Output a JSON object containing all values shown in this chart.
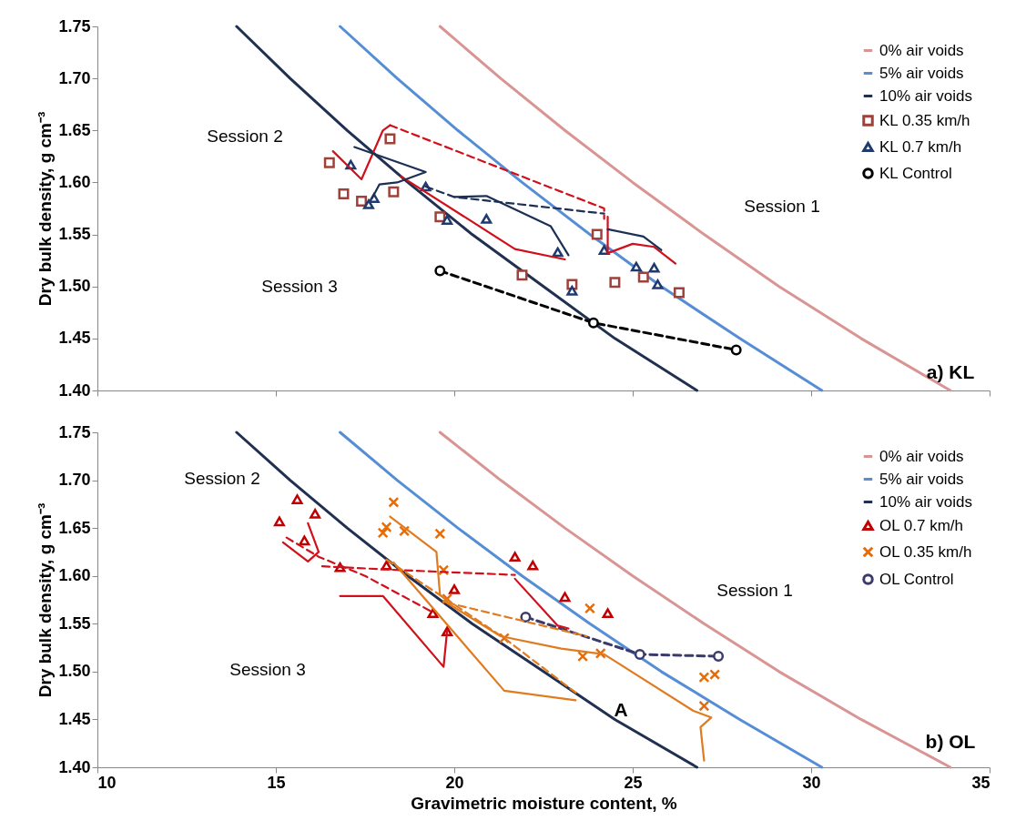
{
  "chart_data": [
    {
      "type": "scatter",
      "ylabel": "Dry bulk density, g cm⁻³",
      "xlim": [
        10,
        35
      ],
      "xticks": [
        10,
        15,
        20,
        25,
        30,
        35
      ],
      "ylim": [
        1.4,
        1.75
      ],
      "yticks": [
        {
          "value": 1.4,
          "label": "1.40"
        },
        {
          "value": 1.45,
          "label": "1.45"
        },
        {
          "value": 1.5,
          "label": "1.50"
        },
        {
          "value": 1.55,
          "label": "1.55"
        },
        {
          "value": 1.6,
          "label": "1.60"
        },
        {
          "value": 1.65,
          "label": "1.65"
        },
        {
          "value": 1.7,
          "label": "1.70"
        },
        {
          "value": 1.75,
          "label": "1.75"
        }
      ],
      "tick_labels": "y",
      "legend": "top right",
      "series": [
        {
          "name": "0% air voids",
          "type": "line",
          "color": "#d99594",
          "line_style": "solid",
          "x": [
            19.6,
            21.3,
            23.1,
            25.0,
            27.0,
            29.1,
            31.4,
            33.9
          ],
          "values": [
            1.75,
            1.7,
            1.65,
            1.6,
            1.55,
            1.5,
            1.45,
            1.4
          ]
        },
        {
          "name": "5% air voids",
          "type": "line",
          "color": "#558ed5",
          "line_style": "solid",
          "x": [
            16.8,
            18.4,
            20.1,
            21.9,
            23.8,
            25.8,
            28.0,
            30.3
          ],
          "values": [
            1.75,
            1.7,
            1.65,
            1.6,
            1.55,
            1.5,
            1.45,
            1.4
          ]
        },
        {
          "name": "10% air voids",
          "type": "line",
          "color": "#1f3050",
          "line_style": "solid",
          "x": [
            13.9,
            15.4,
            17.0,
            18.7,
            20.5,
            22.5,
            24.5,
            26.8
          ],
          "values": [
            1.75,
            1.7,
            1.65,
            1.6,
            1.55,
            1.5,
            1.45,
            1.4
          ]
        },
        {
          "name": "KL 0.35 km/h",
          "type": "scatter",
          "color": "#a0403a",
          "marker": "square",
          "x": [
            16.5,
            18.2,
            16.9,
            17.4,
            18.3,
            19.6,
            21.9,
            23.3,
            24.0,
            24.5,
            25.3,
            26.3
          ],
          "values": [
            1.619,
            1.642,
            1.589,
            1.582,
            1.591,
            1.567,
            1.511,
            1.502,
            1.55,
            1.504,
            1.509,
            1.494
          ]
        },
        {
          "name": "KL 0.7 km/h",
          "type": "scatter",
          "color": "#1f3a6e",
          "marker": "triangle",
          "x": [
            17.1,
            17.6,
            17.75,
            19.2,
            19.8,
            20.9,
            22.9,
            23.3,
            24.2,
            25.1,
            25.6,
            25.7
          ],
          "values": [
            1.617,
            1.579,
            1.585,
            1.596,
            1.564,
            1.565,
            1.533,
            1.496,
            1.535,
            1.519,
            1.518,
            1.502
          ]
        },
        {
          "name": "KL Control",
          "type": "line",
          "color": "#000000",
          "line_style": "dashed",
          "marker": "circle",
          "x": [
            19.6,
            23.9,
            27.9
          ],
          "values": [
            1.515,
            1.465,
            1.439
          ]
        },
        {
          "type": "line",
          "color": "#d0101b",
          "line_style": "solid",
          "x": [
            16.6,
            17.4,
            18.0,
            18.2
          ],
          "values": [
            1.63,
            1.603,
            1.65,
            1.655
          ]
        },
        {
          "type": "line",
          "color": "#d0101b",
          "line_style": "dashed",
          "x": [
            18.2,
            24.2,
            24.2
          ],
          "values": [
            1.655,
            1.575,
            1.565
          ]
        },
        {
          "type": "line",
          "color": "#d0101b",
          "line_style": "solid",
          "x": [
            24.3,
            24.3,
            25.0,
            25.6,
            26.2
          ],
          "values": [
            1.567,
            1.532,
            1.541,
            1.538,
            1.522
          ]
        },
        {
          "type": "line",
          "color": "#d0101b",
          "line_style": "solid",
          "x": [
            18.5,
            21.7,
            23.1
          ],
          "values": [
            1.606,
            1.536,
            1.526
          ]
        },
        {
          "type": "line",
          "color": "#1c2f55",
          "line_style": "solid",
          "x": [
            17.2,
            19.2,
            18.4,
            17.9,
            17.7
          ],
          "values": [
            1.634,
            1.61,
            1.6,
            1.598,
            1.585
          ]
        },
        {
          "type": "line",
          "color": "#1c2f55",
          "line_style": "dashed",
          "x": [
            19.2,
            20.0,
            24.2
          ],
          "values": [
            1.596,
            1.586,
            1.57
          ]
        },
        {
          "type": "line",
          "color": "#1c2f55",
          "line_style": "solid",
          "x": [
            20.0,
            20.9,
            22.7,
            23.2
          ],
          "values": [
            1.586,
            1.587,
            1.558,
            1.53
          ]
        },
        {
          "type": "line",
          "color": "#1c2f55",
          "line_style": "solid",
          "x": [
            24.3,
            25.3,
            25.8
          ],
          "values": [
            1.555,
            1.548,
            1.535
          ]
        }
      ],
      "annotations": [
        "Session 2",
        "Session 1",
        "Session 3",
        "a) KL"
      ]
    },
    {
      "type": "scatter",
      "xlabel": "Gravimetric moisture content, %",
      "ylabel": "Dry bulk density, g cm⁻³",
      "xlim": [
        10,
        35
      ],
      "xticks": [
        10,
        15,
        20,
        25,
        30,
        35
      ],
      "ylim": [
        1.4,
        1.75
      ],
      "yticks": [
        {
          "value": 1.4,
          "label": "1.40"
        },
        {
          "value": 1.45,
          "label": "1.45"
        },
        {
          "value": 1.5,
          "label": "1.50"
        },
        {
          "value": 1.55,
          "label": "1.55"
        },
        {
          "value": 1.6,
          "label": "1.60"
        },
        {
          "value": 1.65,
          "label": "1.65"
        },
        {
          "value": 1.7,
          "label": "1.70"
        },
        {
          "value": 1.75,
          "label": "1.75"
        }
      ],
      "legend": "top right",
      "series": [
        {
          "name": "0% air voids",
          "type": "line",
          "color": "#d99594",
          "line_style": "solid",
          "x": [
            19.6,
            21.3,
            23.1,
            25.0,
            27.0,
            29.1,
            31.4,
            33.9
          ],
          "values": [
            1.75,
            1.7,
            1.65,
            1.6,
            1.55,
            1.5,
            1.45,
            1.4
          ]
        },
        {
          "name": "5% air voids",
          "type": "line",
          "color": "#558ed5",
          "line_style": "solid",
          "x": [
            16.8,
            18.4,
            20.1,
            21.9,
            23.8,
            25.8,
            28.0,
            30.3
          ],
          "values": [
            1.75,
            1.7,
            1.65,
            1.6,
            1.55,
            1.5,
            1.45,
            1.4
          ]
        },
        {
          "name": "10% air voids",
          "type": "line",
          "color": "#1f3050",
          "line_style": "solid",
          "x": [
            13.9,
            15.4,
            17.0,
            18.7,
            20.5,
            22.5,
            24.5,
            26.8
          ],
          "values": [
            1.75,
            1.7,
            1.65,
            1.6,
            1.55,
            1.5,
            1.45,
            1.4
          ]
        },
        {
          "name": "OL 0.7 km/h",
          "type": "scatter",
          "color": "#c00000",
          "marker": "triangle",
          "x": [
            15.6,
            16.1,
            15.1,
            15.8,
            16.8,
            18.1,
            20.0,
            19.8,
            19.4,
            21.7,
            22.2,
            23.1,
            24.3
          ],
          "values": [
            1.68,
            1.665,
            1.657,
            1.637,
            1.609,
            1.611,
            1.586,
            1.542,
            1.561,
            1.62,
            1.611,
            1.578,
            1.561
          ]
        },
        {
          "name": "OL 0.35 km/h",
          "type": "scatter",
          "color": "#e46c0a",
          "marker": "cross",
          "x": [
            18.3,
            18.1,
            18.0,
            18.6,
            19.6,
            19.7,
            19.8,
            21.4,
            23.8,
            23.6,
            24.1,
            27.0,
            27.3,
            27.0
          ],
          "values": [
            1.677,
            1.651,
            1.645,
            1.647,
            1.644,
            1.606,
            1.576,
            1.535,
            1.566,
            1.516,
            1.519,
            1.494,
            1.497,
            1.464
          ]
        },
        {
          "name": "OL Control",
          "type": "line",
          "color": "#3b3b6b",
          "line_style": "dashed",
          "marker": "circle",
          "x": [
            22.0,
            25.2,
            27.4
          ],
          "values": [
            1.557,
            1.518,
            1.516
          ]
        },
        {
          "type": "line",
          "color": "#d0101b",
          "line_style": "solid",
          "x": [
            15.9,
            16.2,
            15.9,
            15.2
          ],
          "values": [
            1.655,
            1.625,
            1.615,
            1.635
          ]
        },
        {
          "type": "line",
          "color": "#d0101b",
          "line_style": "dashed",
          "x": [
            15.3,
            16.2,
            17.5,
            19.4
          ],
          "values": [
            1.64,
            1.62,
            1.6,
            1.562
          ]
        },
        {
          "type": "line",
          "color": "#d0101b",
          "line_style": "dashed",
          "x": [
            16.3,
            18.5,
            21.7
          ],
          "values": [
            1.61,
            1.606,
            1.601
          ]
        },
        {
          "type": "line",
          "color": "#d0101b",
          "line_style": "solid",
          "x": [
            16.8,
            18.0,
            19.7,
            19.8
          ],
          "values": [
            1.579,
            1.579,
            1.505,
            1.543
          ]
        },
        {
          "type": "line",
          "color": "#d0101b",
          "line_style": "solid",
          "x": [
            21.7,
            22.9,
            23.2
          ],
          "values": [
            1.597,
            1.548,
            1.545
          ]
        },
        {
          "type": "line",
          "color": "#e07b20",
          "line_style": "solid",
          "x": [
            18.2,
            19.5,
            19.6,
            19.8
          ],
          "values": [
            1.662,
            1.625,
            1.58,
            1.574
          ]
        },
        {
          "type": "line",
          "color": "#e07b20",
          "line_style": "solid",
          "x": [
            18.3,
            21.4,
            23.4
          ],
          "values": [
            1.614,
            1.48,
            1.47
          ]
        },
        {
          "type": "line",
          "color": "#e07b20",
          "line_style": "solid",
          "x": [
            19.7,
            21.3,
            23.0,
            24.2,
            26.7,
            27.2,
            26.9,
            27.0
          ],
          "values": [
            1.574,
            1.537,
            1.524,
            1.518,
            1.459,
            1.452,
            1.442,
            1.407
          ]
        },
        {
          "type": "line",
          "color": "#e07b20",
          "line_style": "dashed",
          "x": [
            18.1,
            19.8,
            21.4,
            23.4
          ],
          "values": [
            1.617,
            1.575,
            1.535,
            1.478
          ]
        },
        {
          "type": "line",
          "color": "#e07b20",
          "line_style": "dashed",
          "x": [
            19.8,
            23.7
          ],
          "values": [
            1.572,
            1.537
          ]
        }
      ],
      "annotations": [
        "Session  2",
        "Session 1",
        "Session 3",
        "b) OL",
        "A"
      ]
    }
  ]
}
